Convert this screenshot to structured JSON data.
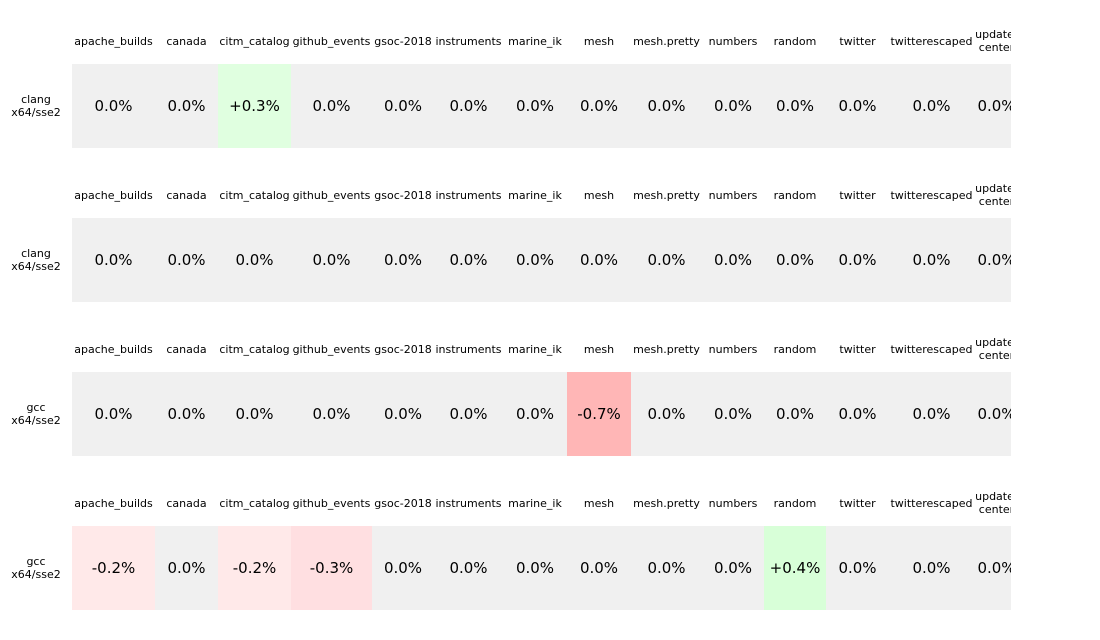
{
  "columns": [
    "apache_builds",
    "canada",
    "citm_catalog",
    "github_events",
    "gsoc-2018",
    "instruments",
    "marine_ik",
    "mesh",
    "mesh.pretty",
    "numbers",
    "random",
    "twitter",
    "twitterescaped",
    "update-\ncenter"
  ],
  "panels": [
    {
      "row_label": "clang\nx64/sse2",
      "cells": [
        "0.0%",
        "0.0%",
        "+0.3%",
        "0.0%",
        "0.0%",
        "0.0%",
        "0.0%",
        "0.0%",
        "0.0%",
        "0.0%",
        "0.0%",
        "0.0%",
        "0.0%",
        "0.0%"
      ],
      "colors": [
        "#f0f0f0",
        "#f0f0f0",
        "#e0ffe0",
        "#f0f0f0",
        "#f0f0f0",
        "#f0f0f0",
        "#f0f0f0",
        "#f0f0f0",
        "#f0f0f0",
        "#f0f0f0",
        "#f0f0f0",
        "#f0f0f0",
        "#f0f0f0",
        "#f0f0f0"
      ]
    },
    {
      "row_label": "clang\nx64/sse2",
      "cells": [
        "0.0%",
        "0.0%",
        "0.0%",
        "0.0%",
        "0.0%",
        "0.0%",
        "0.0%",
        "0.0%",
        "0.0%",
        "0.0%",
        "0.0%",
        "0.0%",
        "0.0%",
        "0.0%"
      ],
      "colors": [
        "#f0f0f0",
        "#f0f0f0",
        "#f0f0f0",
        "#f0f0f0",
        "#f0f0f0",
        "#f0f0f0",
        "#f0f0f0",
        "#f0f0f0",
        "#f0f0f0",
        "#f0f0f0",
        "#f0f0f0",
        "#f0f0f0",
        "#f0f0f0",
        "#f0f0f0"
      ]
    },
    {
      "row_label": "gcc\nx64/sse2",
      "cells": [
        "0.0%",
        "0.0%",
        "0.0%",
        "0.0%",
        "0.0%",
        "0.0%",
        "0.0%",
        "-0.7%",
        "0.0%",
        "0.0%",
        "0.0%",
        "0.0%",
        "0.0%",
        "0.0%"
      ],
      "colors": [
        "#f0f0f0",
        "#f0f0f0",
        "#f0f0f0",
        "#f0f0f0",
        "#f0f0f0",
        "#f0f0f0",
        "#f0f0f0",
        "#ffb6b6",
        "#f0f0f0",
        "#f0f0f0",
        "#f0f0f0",
        "#f0f0f0",
        "#f0f0f0",
        "#f0f0f0"
      ]
    },
    {
      "row_label": "gcc\nx64/sse2",
      "cells": [
        "-0.2%",
        "0.0%",
        "-0.2%",
        "-0.3%",
        "0.0%",
        "0.0%",
        "0.0%",
        "0.0%",
        "0.0%",
        "0.0%",
        "+0.4%",
        "0.0%",
        "0.0%",
        "0.0%"
      ],
      "colors": [
        "#ffe9e9",
        "#f0f0f0",
        "#ffe9e9",
        "#ffdfe1",
        "#f0f0f0",
        "#f0f0f0",
        "#f0f0f0",
        "#f0f0f0",
        "#f0f0f0",
        "#f0f0f0",
        "#d8ffd8",
        "#f0f0f0",
        "#f0f0f0",
        "#f0f0f0"
      ]
    }
  ]
}
